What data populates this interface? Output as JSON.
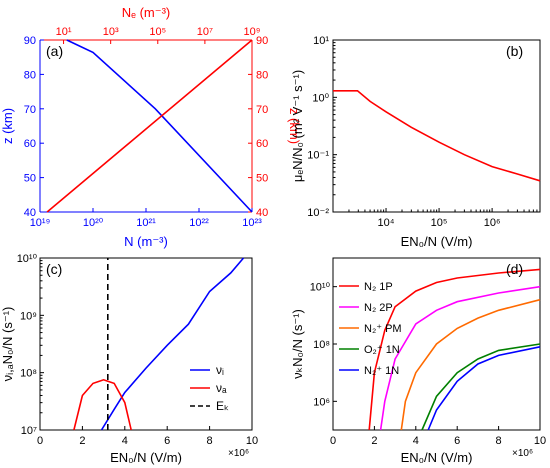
{
  "chart_data": [
    {
      "panel": "(a)",
      "type": "line",
      "xlabel_bottom": "N (m⁻³)",
      "xlabel_top": "Nₑ (m⁻³)",
      "ylabel_left": "z (km)",
      "ylabel_right": "z (km)",
      "x_bottom_scale": "log",
      "x_bottom_lim": [
        1e+19,
        1e+23
      ],
      "x_bottom_ticks": [
        "10¹⁹",
        "10²⁰",
        "10²¹",
        "10²²",
        "10²³"
      ],
      "x_top_scale": "log",
      "x_top_lim": [
        1,
        1000000000.0
      ],
      "x_top_ticks": [
        "10¹",
        "10³",
        "10⁵",
        "10⁷",
        "10⁹"
      ],
      "ylim": [
        40,
        90
      ],
      "yticks": [
        "40",
        "50",
        "60",
        "70",
        "80",
        "90"
      ],
      "series": [
        {
          "color": "#0000ff",
          "axis": "bottom",
          "x": [
            3.2e+19,
            1e+20,
            1.5e+21,
            1e+23
          ],
          "y": [
            90,
            86.4,
            70,
            40
          ]
        },
        {
          "color": "#ff0000",
          "axis": "top",
          "x": [
            2,
            1000000000.0
          ],
          "y": [
            40,
            90
          ]
        }
      ]
    },
    {
      "panel": "(b)",
      "type": "line",
      "xlabel": "EN₀/N (V/m)",
      "ylabel": "μₑN/N₀ (m² V⁻¹ s⁻¹)",
      "x_scale": "log",
      "xlim": [
        1000,
        8000000
      ],
      "xticks": [
        "10⁴",
        "10⁵",
        "10⁶"
      ],
      "y_scale": "log",
      "ylim": [
        0.01,
        10
      ],
      "yticks": [
        "10⁻²",
        "10⁻¹",
        "10⁰",
        "10¹"
      ],
      "series": [
        {
          "color": "#ff0000",
          "x": [
            1000,
            2900,
            5000,
            10000,
            30000,
            100000,
            300000,
            1000000,
            3000000,
            8000000
          ],
          "y": [
            1.3,
            1.3,
            0.85,
            0.56,
            0.3,
            0.165,
            0.1,
            0.062,
            0.046,
            0.035
          ]
        }
      ]
    },
    {
      "panel": "(c)",
      "type": "line",
      "xlabel": "EN₀/N (V/m)",
      "ylabel": "νᵢ,ₐN₀/N (s⁻¹)",
      "x_multiplier": "×10⁶",
      "xlim": [
        0,
        10
      ],
      "xticks": [
        "0",
        "2",
        "4",
        "6",
        "8",
        "10"
      ],
      "y_scale": "log",
      "ylim": [
        10000000.0,
        10000000000.0
      ],
      "yticks": [
        "10⁷",
        "10⁸",
        "10⁹",
        "10¹⁰"
      ],
      "legend": [
        {
          "label": "νᵢ",
          "color": "#0000ff",
          "dash": false
        },
        {
          "label": "νₐ",
          "color": "#ff0000",
          "dash": false
        },
        {
          "label": "Eₖ",
          "color": "#000000",
          "dash": true
        }
      ],
      "series": [
        {
          "color": "#0000ff",
          "x": [
            2.9,
            3.5,
            4,
            5,
            6,
            7,
            8,
            9,
            9.6
          ],
          "y": [
            10000000.0,
            23000000.0,
            45000000.0,
            120000000.0,
            300000000.0,
            700000000.0,
            2600000000.0,
            5500000000.0,
            10000000000.0
          ]
        },
        {
          "color": "#ff0000",
          "x": [
            1.6,
            2,
            2.5,
            3,
            3.5,
            4,
            4.3
          ],
          "y": [
            10000000.0,
            40000000.0,
            65000000.0,
            75000000.0,
            65000000.0,
            30000000.0,
            10000000.0
          ]
        },
        {
          "color": "#000000",
          "dash": true,
          "x": [
            3.2,
            3.2
          ],
          "y": [
            10000000.0,
            10000000000.0
          ]
        }
      ]
    },
    {
      "panel": "(d)",
      "type": "line",
      "xlabel": "EN₀/N (V/m)",
      "ylabel": "νₖN₀/N (s⁻¹)",
      "x_multiplier": "×10⁶",
      "xlim": [
        0,
        10
      ],
      "xticks": [
        "0",
        "2",
        "4",
        "6",
        "8",
        "10"
      ],
      "y_scale": "log",
      "ylim": [
        100000,
        100000000000.0
      ],
      "yticks": [
        "10⁶",
        "10⁸",
        "10¹⁰"
      ],
      "legend": [
        {
          "label": "N₂ 1P",
          "color": "#ff0000"
        },
        {
          "label": "N₂ 2P",
          "color": "#ff00ff"
        },
        {
          "label": "N₂⁺ PM",
          "color": "#ff6a00"
        },
        {
          "label": "O₂⁺ 1N",
          "color": "#008000"
        },
        {
          "label": "N₂⁺ 1N",
          "color": "#0000ff"
        }
      ],
      "series": [
        {
          "color": "#ff0000",
          "x": [
            1.75,
            2,
            2.5,
            3,
            4,
            5,
            6,
            8,
            10
          ],
          "y": [
            100000,
            10000000.0,
            300000000.0,
            2000000000.0,
            7000000000.0,
            14000000000.0,
            20000000000.0,
            30000000000.0,
            40000000000.0
          ]
        },
        {
          "color": "#ff00ff",
          "x": [
            2.3,
            2.5,
            3,
            4,
            5,
            6,
            8,
            10
          ],
          "y": [
            100000,
            1000000.0,
            30000000.0,
            500000000.0,
            1500000000.0,
            3000000000.0,
            6000000000.0,
            10000000000.0
          ]
        },
        {
          "color": "#ff6a00",
          "x": [
            3.3,
            3.5,
            4,
            5,
            6,
            7,
            8,
            10
          ],
          "y": [
            100000,
            1000000.0,
            10000000.0,
            100000000.0,
            350000000.0,
            800000000.0,
            1500000000.0,
            3500000000.0
          ]
        },
        {
          "color": "#008000",
          "x": [
            4.3,
            5,
            6,
            7,
            8,
            10
          ],
          "y": [
            100000,
            1500000.0,
            10000000.0,
            30000000.0,
            60000000.0,
            100000000.0
          ]
        },
        {
          "color": "#0000ff",
          "x": [
            4.6,
            5,
            6,
            7,
            8,
            10
          ],
          "y": [
            100000,
            500000.0,
            5000000.0,
            20000000.0,
            40000000.0,
            80000000.0
          ]
        }
      ]
    }
  ]
}
